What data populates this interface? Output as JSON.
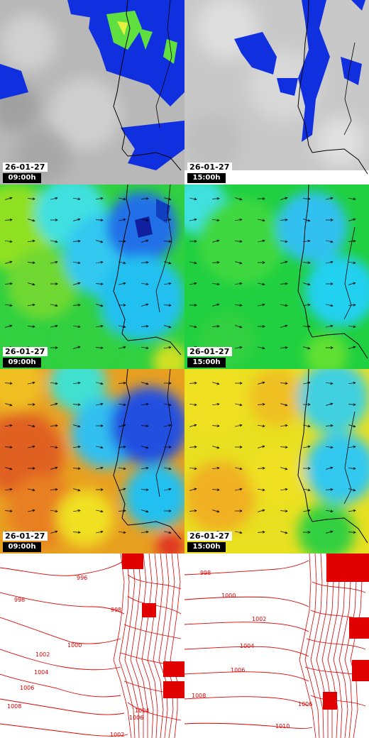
{
  "panels": [
    {
      "id": "cloud-0900",
      "date": "26-01-27",
      "time": "09:00h"
    },
    {
      "id": "cloud-1500",
      "date": "26-01-27",
      "time": "15:00h"
    },
    {
      "id": "temp-0900",
      "date": "26-01-27",
      "time": "09:00h"
    },
    {
      "id": "temp-1500",
      "date": "26-01-27",
      "time": "15:00h"
    },
    {
      "id": "wind-0900",
      "date": "26-01-27",
      "time": "09:00h"
    },
    {
      "id": "wind-1500",
      "date": "26-01-27",
      "time": "15:00h"
    },
    {
      "id": "pressure-0900"
    },
    {
      "id": "pressure-1500"
    }
  ],
  "isobar_labels_left": [
    "996",
    "998",
    "998",
    "1000",
    "1002",
    "1004",
    "1006",
    "1008",
    "1006",
    "1004",
    "1002"
  ],
  "isobar_labels_right": [
    "998",
    "1000",
    "1002",
    "1004",
    "1006",
    "1008",
    "1010",
    "1006"
  ],
  "colors": {
    "isobar": "#e00000",
    "precip_blue": "#1030e0",
    "precip_green": "#60e040",
    "timestamp_bg": "#000000"
  }
}
